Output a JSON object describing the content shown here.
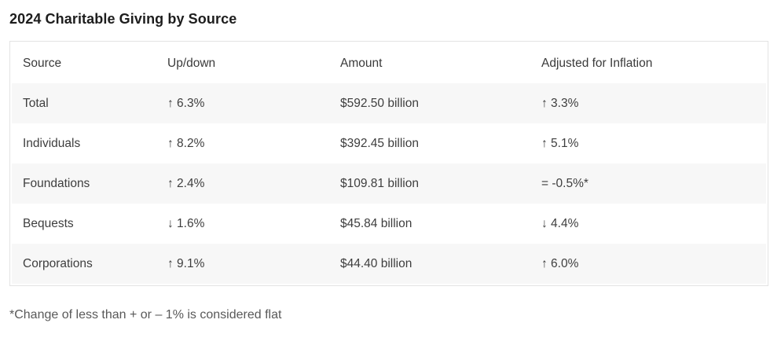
{
  "page": {
    "title": "2024 Charitable Giving by Source",
    "footnote": "*Change of less than + or – 1% is considered flat"
  },
  "table": {
    "columns": [
      "Source",
      "Up/down",
      "Amount",
      "Adjusted for Inflation"
    ],
    "rows": [
      {
        "source": "Total",
        "up_down": "↑ 6.3%",
        "amount": "$592.50 billion",
        "adjusted": "↑ 3.3%"
      },
      {
        "source": "Individuals",
        "up_down": "↑ 8.2%",
        "amount": "$392.45 billion",
        "adjusted": "↑ 5.1%"
      },
      {
        "source": "Foundations",
        "up_down": "↑ 2.4%",
        "amount": "$109.81 billion",
        "adjusted": "= -0.5%*"
      },
      {
        "source": "Bequests",
        "up_down": "↓ 1.6%",
        "amount": "$45.84 billion",
        "adjusted": "↓ 4.4%"
      },
      {
        "source": "Corporations",
        "up_down": "↑ 9.1%",
        "amount": "$44.40 billion",
        "adjusted": "↑ 6.0%"
      }
    ]
  },
  "colors": {
    "stripe": "#f7f7f7",
    "border": "#e3e3e3",
    "body_text": "#3e3e3e",
    "title_text": "#1d1d1d",
    "footnote_text": "#595959",
    "background": "#ffffff"
  },
  "chart_data": {
    "type": "table",
    "title": "2024 Charitable Giving by Source",
    "columns": [
      "Source",
      "Up/down",
      "Amount",
      "Adjusted for Inflation"
    ],
    "rows": [
      [
        "Total",
        "↑ 6.3%",
        "$592.50 billion",
        "↑ 3.3%"
      ],
      [
        "Individuals",
        "↑ 8.2%",
        "$392.45 billion",
        "↑ 5.1%"
      ],
      [
        "Foundations",
        "↑ 2.4%",
        "$109.81 billion",
        "= -0.5%*"
      ],
      [
        "Bequests",
        "↓ 1.6%",
        "$45.84 billion",
        "↓ 4.4%"
      ],
      [
        "Corporations",
        "↑ 9.1%",
        "$44.40 billion",
        "↑ 6.0%"
      ]
    ],
    "amount_billion_usd": {
      "Total": 592.5,
      "Individuals": 392.45,
      "Foundations": 109.81,
      "Bequests": 45.84,
      "Corporations": 44.4
    },
    "change_pct": {
      "Total": 6.3,
      "Individuals": 8.2,
      "Foundations": 2.4,
      "Bequests": -1.6,
      "Corporations": 9.1
    },
    "inflation_adjusted_change_pct": {
      "Total": 3.3,
      "Individuals": 5.1,
      "Foundations": -0.5,
      "Bequests": -4.4,
      "Corporations": 6.0
    },
    "footnote": "*Change of less than + or – 1% is considered flat",
    "layout": {
      "striped_rows": true,
      "grid": "off",
      "header_position": "top"
    }
  }
}
